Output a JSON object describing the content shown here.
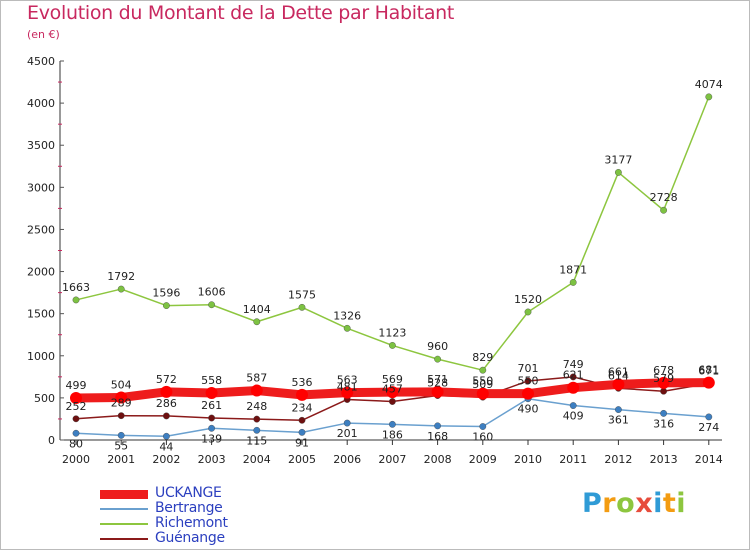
{
  "header": {
    "title": "Evolution du Montant de la Dette par Habitant",
    "subtitle": "(en €)"
  },
  "colors": {
    "title": "#c8285f",
    "axis": "#333333",
    "grid_tick": "#c8285f"
  },
  "logo": {
    "text": "Proxiti",
    "letters": [
      {
        "ch": "P",
        "color": "#2f9bd6"
      },
      {
        "ch": "r",
        "color": "#f39c12"
      },
      {
        "ch": "o",
        "color": "#8dc63f"
      },
      {
        "ch": "x",
        "color": "#e74c3c"
      },
      {
        "ch": "i",
        "color": "#2f9bd6"
      },
      {
        "ch": "t",
        "color": "#f39c12"
      },
      {
        "ch": "i",
        "color": "#8dc63f"
      }
    ]
  },
  "chart_data": {
    "type": "line",
    "title": "Evolution du Montant de la Dette par Habitant",
    "subtitle": "(en €)",
    "x": [
      "2000",
      "2001",
      "2002",
      "2003",
      "2004",
      "2005",
      "2006",
      "2007",
      "2008",
      "2009",
      "2010",
      "2011",
      "2012",
      "2013",
      "2014"
    ],
    "ylim": [
      0,
      4500
    ],
    "yticks": [
      0,
      500,
      1000,
      1500,
      2000,
      2500,
      3000,
      3500,
      4000,
      4500
    ],
    "grid": false,
    "legend": "bottom-left",
    "series": [
      {
        "name": "Richemont",
        "color": "#8dc63f",
        "marker": "#7dc242",
        "values": [
          1663,
          1792,
          1596,
          1606,
          1404,
          1575,
          1326,
          1123,
          960,
          829,
          1520,
          1871,
          3177,
          2728,
          4074
        ],
        "labels": [
          "1663",
          "1792",
          "1596",
          "1606",
          "1404",
          "1575",
          "1326",
          "1123",
          "960",
          "829",
          "1520",
          "1871",
          "3177",
          "2728",
          "4074"
        ]
      },
      {
        "name": "Bertrange",
        "color": "#6aa0cf",
        "marker": "#3d7fc1",
        "values": [
          80,
          55,
          44,
          139,
          115,
          91,
          201,
          186,
          168,
          160,
          490,
          409,
          361,
          316,
          274
        ],
        "labels": [
          "80",
          "55",
          "44",
          "139",
          "115",
          "91",
          "201",
          "186",
          "168",
          "160",
          "490",
          "409",
          "361",
          "316",
          "274"
        ]
      },
      {
        "name": "Guénange",
        "color": "#8b1a1a",
        "marker": "#6e1010",
        "values": [
          252,
          289,
          286,
          261,
          248,
          234,
          481,
          457,
          528,
          509,
          701,
          749,
          614,
          579,
          671
        ],
        "labels": [
          "252",
          "289",
          "286",
          "261",
          "248",
          "234",
          "481",
          "457",
          "528",
          "509",
          "701",
          "749",
          "614",
          "579",
          "671"
        ]
      },
      {
        "name": "UCKANGE",
        "color": "#ee1c1c",
        "marker": "#ff0000",
        "values": [
          499,
          504,
          572,
          558,
          587,
          536,
          563,
          569,
          571,
          550,
          550,
          621,
          661,
          678,
          681
        ],
        "labels": [
          "499",
          "504",
          "572",
          "558",
          "587",
          "536",
          "563",
          "569",
          "571",
          "550",
          "550",
          "621",
          "661",
          "678",
          "681"
        ]
      }
    ]
  },
  "legend": {
    "items": [
      {
        "name": "UCKANGE",
        "color": "#ee1c1c",
        "label_color": "#2b3fbf",
        "width": 9
      },
      {
        "name": "Bertrange",
        "color": "#6aa0cf",
        "label_color": "#2b3fbf",
        "width": 2
      },
      {
        "name": "Richemont",
        "color": "#8dc63f",
        "label_color": "#2b3fbf",
        "width": 2
      },
      {
        "name": "Guénange",
        "color": "#8b1a1a",
        "label_color": "#2b3fbf",
        "width": 2
      }
    ]
  }
}
